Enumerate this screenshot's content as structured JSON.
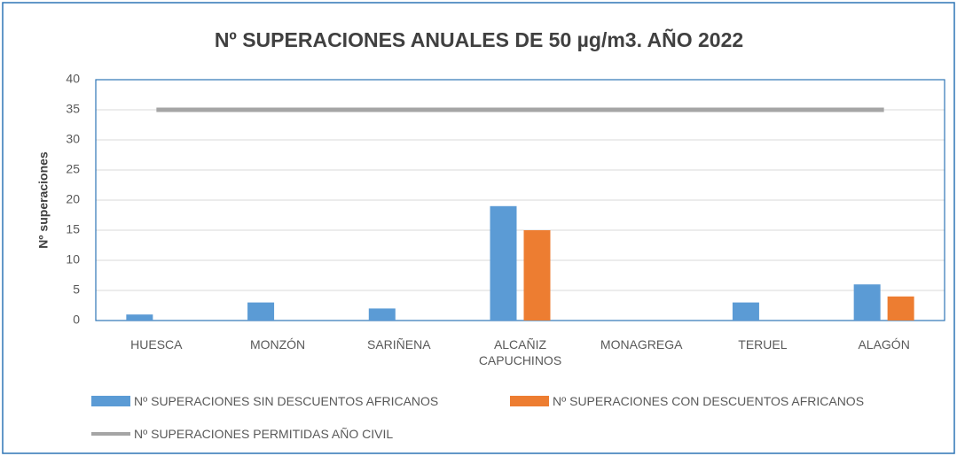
{
  "chart_data": {
    "type": "bar",
    "title": "Nº SUPERACIONES ANUALES DE 50 µg/m3. AÑO 2022",
    "ylabel": "Nº superaciones",
    "categories": [
      "HUESCA",
      "MONZÓN",
      "SARIÑENA",
      "ALCAÑIZ CAPUCHINOS",
      "MONAGREGA",
      "TERUEL",
      "ALAGÓN"
    ],
    "series": [
      {
        "name": "Nº SUPERACIONES SIN DESCUENTOS AFRICANOS",
        "color": "#5b9bd5",
        "type": "bar",
        "values": [
          1,
          3,
          2,
          19,
          0,
          3,
          6
        ]
      },
      {
        "name": "Nº SUPERACIONES CON DESCUENTOS AFRICANOS",
        "color": "#ed7d31",
        "type": "bar",
        "values": [
          0,
          0,
          0,
          15,
          0,
          0,
          4
        ]
      },
      {
        "name": "Nº SUPERACIONES PERMITIDAS AÑO CIVIL",
        "color": "#a5a5a5",
        "type": "line",
        "values": [
          35,
          35,
          35,
          35,
          35,
          35,
          35
        ]
      }
    ],
    "ylim": [
      0,
      40
    ],
    "yticks": [
      0,
      5,
      10,
      15,
      20,
      25,
      30,
      35,
      40
    ],
    "grid": true
  }
}
